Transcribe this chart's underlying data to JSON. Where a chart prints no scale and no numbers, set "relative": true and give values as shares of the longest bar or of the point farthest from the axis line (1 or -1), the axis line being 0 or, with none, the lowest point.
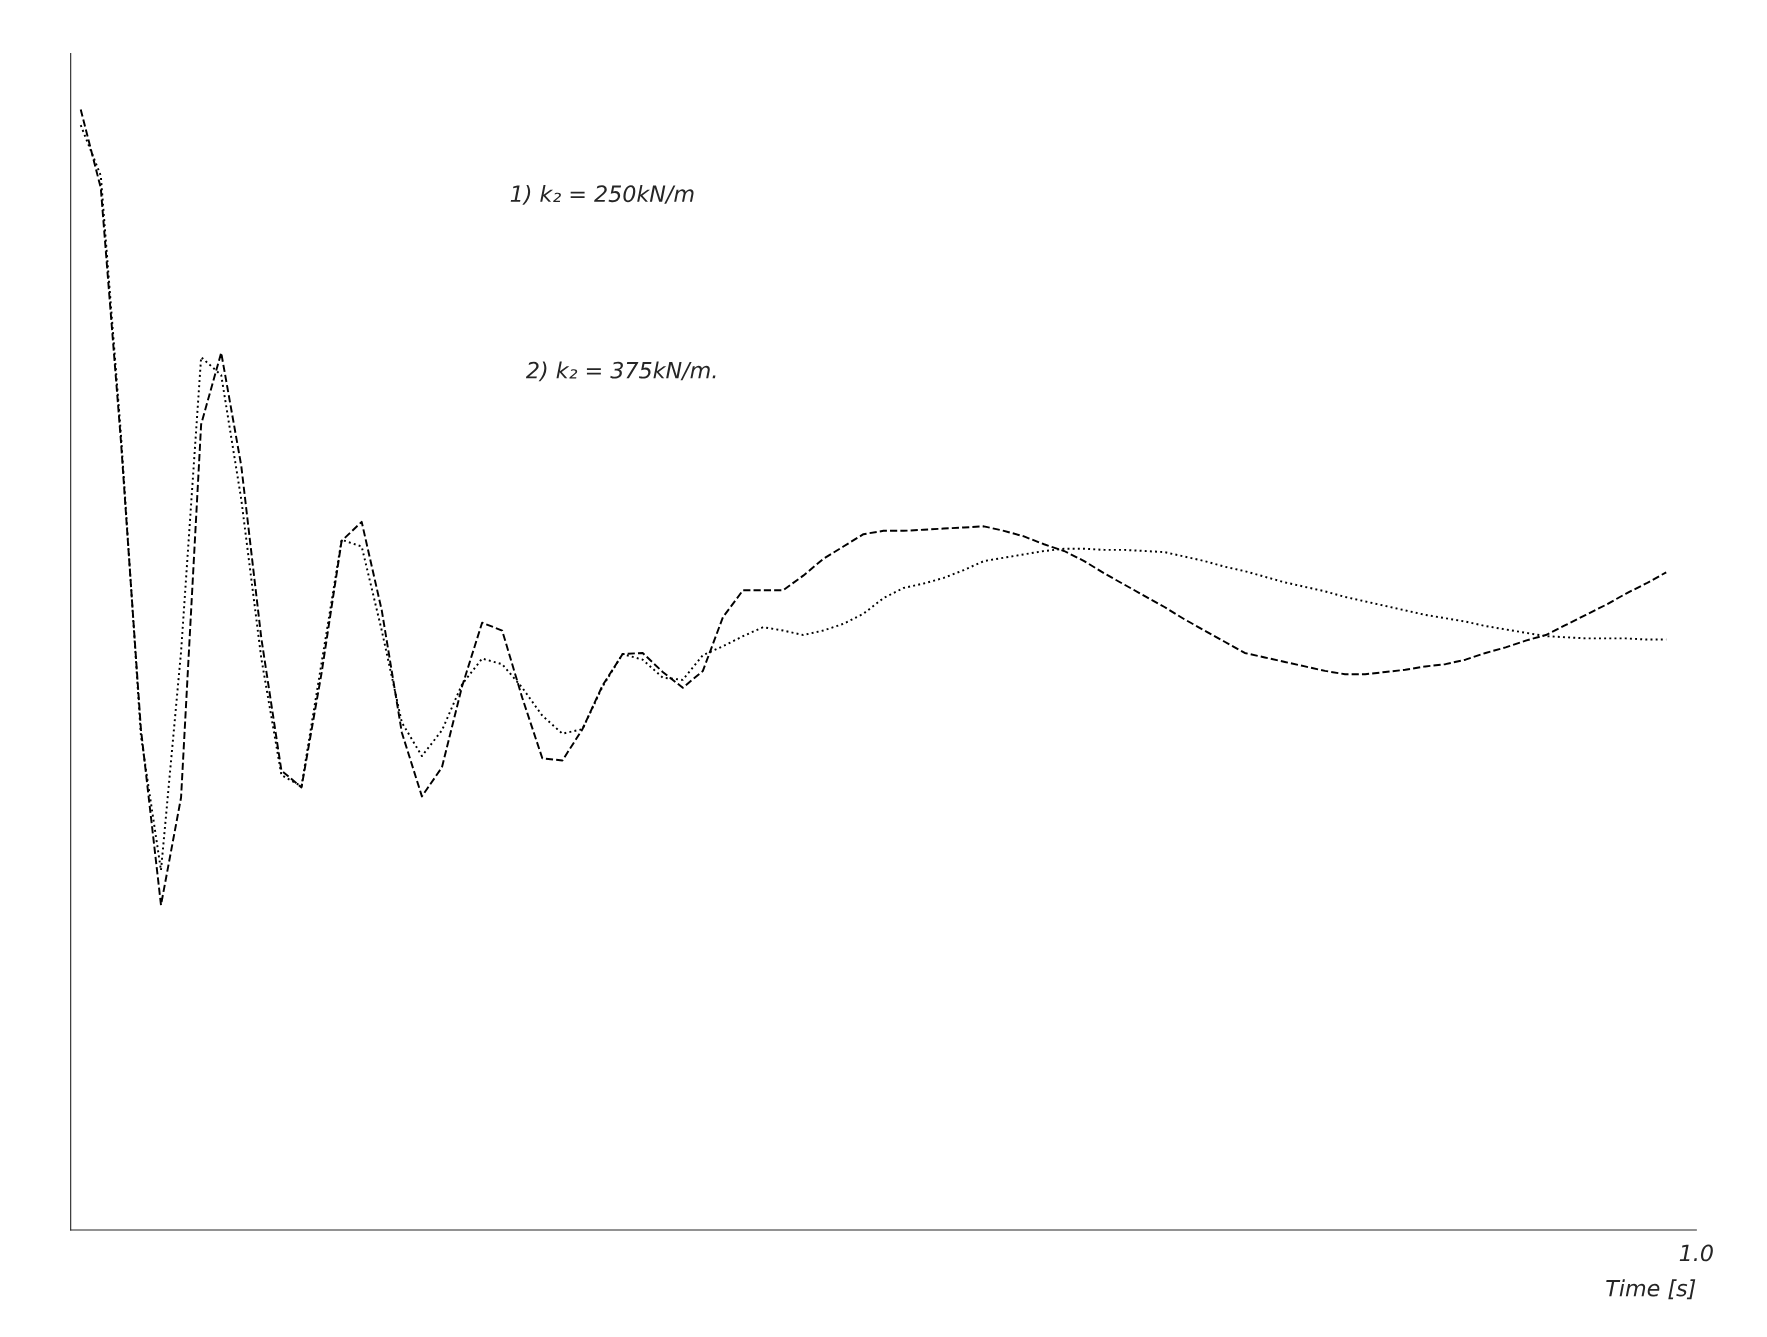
{
  "chart_data": {
    "type": "line",
    "relative": true,
    "xlabel": "Time [s]",
    "categories": [
      null,
      null,
      null,
      null,
      null,
      null,
      null,
      null,
      null,
      null,
      null,
      null,
      null,
      null,
      null,
      null,
      null,
      null,
      null,
      null,
      null,
      null,
      null,
      null,
      null,
      null,
      null,
      null,
      null,
      null,
      null,
      null,
      null,
      null,
      null,
      null,
      null,
      null,
      null,
      null,
      null,
      null,
      null,
      null,
      null,
      null,
      null,
      null,
      null,
      null,
      null,
      null,
      null,
      null,
      null,
      null,
      null,
      null,
      null,
      null,
      null,
      null,
      null,
      null,
      null,
      null,
      null,
      null,
      null,
      null,
      null,
      null,
      null,
      null,
      null,
      null,
      null,
      null,
      null,
      null,
      null
    ],
    "series": [
      {
        "color": "#000000",
        "line_style": "dashed",
        "values": [
          1.0,
          0.93,
          0.705,
          0.447,
          0.29,
          0.386,
          0.719,
          0.783,
          0.682,
          0.528,
          0.41,
          0.395,
          0.497,
          0.615,
          0.632,
          0.553,
          0.444,
          0.387,
          0.413,
          0.485,
          0.542,
          0.535,
          0.475,
          0.421,
          0.419,
          0.447,
          0.486,
          0.514,
          0.515,
          0.498,
          0.484,
          0.499,
          0.547,
          0.571,
          0.571,
          0.571,
          0.584,
          0.599,
          0.61,
          0.621,
          0.624,
          0.624,
          0.625,
          0.626,
          0.627,
          0.628,
          0.624,
          0.619,
          0.612,
          0.606,
          0.597,
          0.586,
          0.576,
          0.566,
          0.556,
          0.545,
          0.535,
          0.525,
          0.515,
          0.511,
          0.507,
          0.503,
          0.499,
          0.496,
          0.496,
          0.498,
          0.5,
          0.503,
          0.505,
          0.509,
          0.515,
          0.52,
          0.526,
          0.531,
          0.54,
          0.549,
          0.558,
          0.568,
          0.577,
          0.587,
          null
        ]
      },
      {
        "color": "#000000",
        "line_style": "dotted",
        "values": [
          0.986,
          0.941,
          0.711,
          0.441,
          0.321,
          0.516,
          0.779,
          0.763,
          0.652,
          0.51,
          0.406,
          0.396,
          0.506,
          0.616,
          0.61,
          0.535,
          0.453,
          0.423,
          0.446,
          0.487,
          0.51,
          0.505,
          0.484,
          0.459,
          0.443,
          0.447,
          0.485,
          0.514,
          0.509,
          0.493,
          0.491,
          0.513,
          0.521,
          0.53,
          0.538,
          0.535,
          0.531,
          0.535,
          0.541,
          0.55,
          0.564,
          0.573,
          0.577,
          0.582,
          0.589,
          0.597,
          0.6,
          0.603,
          0.606,
          0.608,
          0.608,
          0.607,
          0.607,
          0.606,
          0.605,
          0.601,
          0.597,
          0.592,
          0.588,
          0.583,
          0.578,
          0.574,
          0.57,
          0.565,
          0.561,
          0.557,
          0.553,
          0.549,
          0.546,
          0.543,
          0.539,
          0.536,
          0.533,
          0.53,
          0.529,
          0.528,
          0.528,
          0.528,
          0.527,
          0.527,
          null
        ]
      }
    ],
    "annotations": [
      "1) k₂ = 250kN/m",
      "2) k₂ = 375kN/m.",
      "1.0"
    ]
  }
}
